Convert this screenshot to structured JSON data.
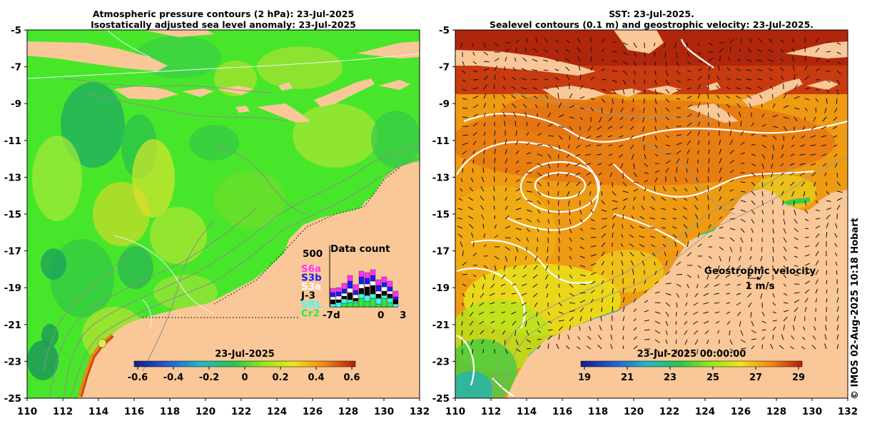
{
  "left_panel": {
    "title_line1": "Atmospheric pressure contours (2 hPa): 23-Jul-2025",
    "title_line2": "Isostatically adjusted sea level anomaly: 23-Jul-2025",
    "colorbar_title": "23-Jul-2025",
    "colorbar_ticks": [
      "-0.6",
      "-0.4",
      "-0.2",
      "0",
      "0.2",
      "0.4",
      "0.6"
    ],
    "data_count": {
      "title": "Data count",
      "max_label": "500",
      "x_labels": [
        "-7d",
        "0",
        "3"
      ],
      "missions": [
        {
          "name": "S6a",
          "color": "#ff33ff"
        },
        {
          "name": "S3b",
          "color": "#1a1aff"
        },
        {
          "name": "S3a",
          "color": "#ffffff"
        },
        {
          "name": "J-3",
          "color": "#000000"
        },
        {
          "name": "SRL",
          "color": "#33ffff"
        },
        {
          "name": "Cr2",
          "color": "#22ee44"
        }
      ]
    }
  },
  "right_panel": {
    "title_line1": "SST: 23-Jul-2025.",
    "title_line2": "Sealevel contours (0.1 m) and geostrophic velocity: 23-Jul-2025.",
    "colorbar_title": "23-Jul-2025 00:00:00",
    "colorbar_ticks": [
      "19",
      "21",
      "23",
      "25",
      "27",
      "29"
    ],
    "velocity_label": "Geostrophic velocity",
    "velocity_scale": "1 m/s"
  },
  "axes": {
    "x_ticks": [
      "110",
      "112",
      "114",
      "116",
      "118",
      "120",
      "122",
      "124",
      "126",
      "128",
      "130",
      "132"
    ],
    "y_ticks": [
      "-5",
      "-7",
      "-9",
      "-11",
      "-13",
      "-15",
      "-17",
      "-19",
      "-21",
      "-23",
      "-25"
    ]
  },
  "credit": "© IMOS 02-Aug-2025 10:18 Hobart",
  "colors": {
    "land": "#fac898",
    "sla_base": "#44ee22",
    "sst_base": "#f09a10"
  }
}
